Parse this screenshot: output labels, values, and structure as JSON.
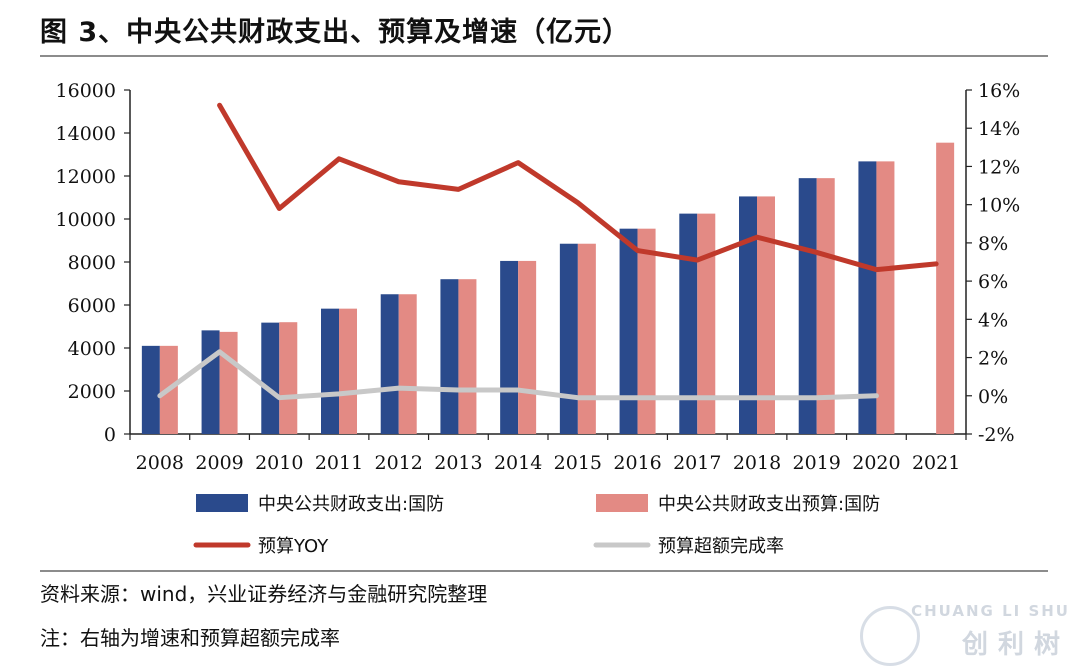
{
  "header": {
    "title": "图 3、中央公共财政支出、预算及增速（亿元）"
  },
  "footer": {
    "source": "资料来源：wind，兴业证券经济与金融研究院整理",
    "note": "注：右轴为增速和预算超额完成率"
  },
  "watermark": {
    "line1": "CHUANG LI SHU",
    "line2": "创利树"
  },
  "colors": {
    "blue": "#2a4a8c",
    "pink": "#e38a84",
    "red": "#c0392b",
    "gray": "#c8c8c8"
  },
  "chart_data": {
    "type": "bar",
    "categories": [
      "2008",
      "2009",
      "2010",
      "2011",
      "2012",
      "2013",
      "2014",
      "2015",
      "2016",
      "2017",
      "2018",
      "2019",
      "2020",
      "2021"
    ],
    "series": [
      {
        "name": "中央公共财政支出:国防",
        "type": "bar",
        "axis": "left",
        "color": "#2a4a8c",
        "values": [
          4100,
          4820,
          5180,
          5830,
          6500,
          7200,
          8050,
          8850,
          9550,
          10250,
          11050,
          11900,
          12680,
          null
        ]
      },
      {
        "name": "中央公共财政支出预算:国防",
        "type": "bar",
        "axis": "left",
        "color": "#e38a84",
        "values": [
          4100,
          4750,
          5200,
          5830,
          6500,
          7200,
          8050,
          8850,
          9550,
          10250,
          11050,
          11900,
          12680,
          13550
        ]
      },
      {
        "name": "预算YOY",
        "type": "line",
        "axis": "right",
        "color": "#c0392b",
        "values": [
          null,
          15.2,
          9.8,
          12.4,
          11.2,
          10.8,
          12.2,
          10.1,
          7.6,
          7.1,
          8.3,
          7.5,
          6.6,
          6.9
        ]
      },
      {
        "name": "预算超额完成率",
        "type": "line",
        "axis": "right",
        "color": "#c8c8c8",
        "values": [
          0.0,
          2.3,
          -0.1,
          0.1,
          0.4,
          0.3,
          0.3,
          -0.1,
          -0.1,
          -0.1,
          -0.1,
          -0.1,
          0.0,
          null
        ]
      }
    ],
    "left_axis": {
      "ylim": [
        0,
        16000
      ],
      "ticks": [
        "0",
        "2000",
        "4000",
        "6000",
        "8000",
        "10000",
        "12000",
        "14000",
        "16000"
      ]
    },
    "right_axis": {
      "ylim": [
        -2,
        16
      ],
      "ticks": [
        "-2%",
        "0%",
        "2%",
        "4%",
        "6%",
        "8%",
        "10%",
        "12%",
        "14%",
        "16%"
      ]
    },
    "grid": false,
    "legend": "bottom"
  }
}
